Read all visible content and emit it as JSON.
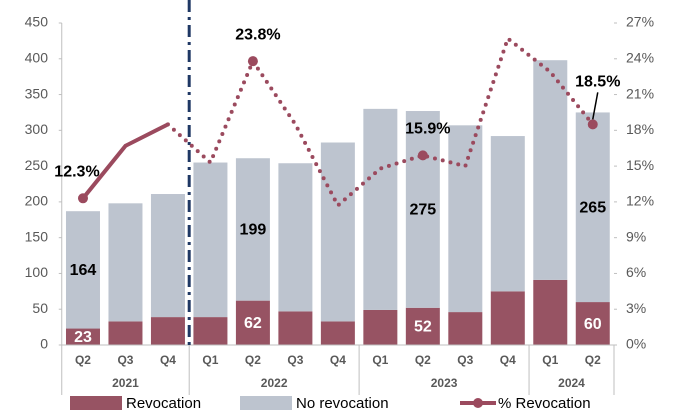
{
  "chart_data": {
    "type": "bar",
    "stacked": true,
    "categories": [
      "Q2",
      "Q3",
      "Q4",
      "Q1",
      "Q2",
      "Q3",
      "Q4",
      "Q1",
      "Q2",
      "Q3",
      "Q4",
      "Q1",
      "Q2"
    ],
    "groups": [
      {
        "label": "2021",
        "count": 3
      },
      {
        "label": "2022",
        "count": 4
      },
      {
        "label": "2023",
        "count": 4
      },
      {
        "label": "2024",
        "count": 2
      }
    ],
    "series": [
      {
        "name": "Revocation",
        "color": "#975363",
        "values": [
          23,
          33,
          39,
          39,
          62,
          47,
          33,
          49,
          52,
          46,
          75,
          91,
          60
        ],
        "value_labels": [
          "23",
          null,
          null,
          null,
          "62",
          null,
          null,
          null,
          "52",
          null,
          null,
          null,
          "60"
        ]
      },
      {
        "name": "No revocation",
        "color": "#bdc4cf",
        "values": [
          164,
          165,
          172,
          216,
          199,
          207,
          250,
          281,
          275,
          261,
          217,
          307,
          265
        ],
        "value_labels": [
          "164",
          null,
          null,
          null,
          "199",
          null,
          null,
          null,
          "275",
          null,
          null,
          null,
          "265"
        ]
      },
      {
        "name": "% Revocation",
        "type": "line",
        "axis": "y2",
        "color": "#9b4a5e",
        "values": [
          12.3,
          16.7,
          18.5,
          15.3,
          23.8,
          18.5,
          11.7,
          14.8,
          15.9,
          15.0,
          25.7,
          22.9,
          18.5
        ],
        "value_labels": [
          "12.3%",
          null,
          null,
          null,
          "23.8%",
          null,
          null,
          null,
          "15.9%",
          null,
          null,
          null,
          "18.5%"
        ]
      }
    ],
    "ylim": [
      0,
      450
    ],
    "yticks": [
      0,
      50,
      100,
      150,
      200,
      250,
      300,
      350,
      400,
      450
    ],
    "y2lim": [
      0,
      27
    ],
    "y2ticks": [
      {
        "value": 0,
        "label": "0%"
      },
      {
        "value": 3,
        "label": "3%"
      },
      {
        "value": 6,
        "label": "6%"
      },
      {
        "value": 9,
        "label": "9%"
      },
      {
        "value": 12,
        "label": "12%"
      },
      {
        "value": 15,
        "label": "15%"
      },
      {
        "value": 18,
        "label": "18%"
      },
      {
        "value": 21,
        "label": "21%"
      },
      {
        "value": 24,
        "label": "24%"
      },
      {
        "value": 27,
        "label": "27%"
      }
    ],
    "grid": false,
    "legend": "bottom"
  }
}
